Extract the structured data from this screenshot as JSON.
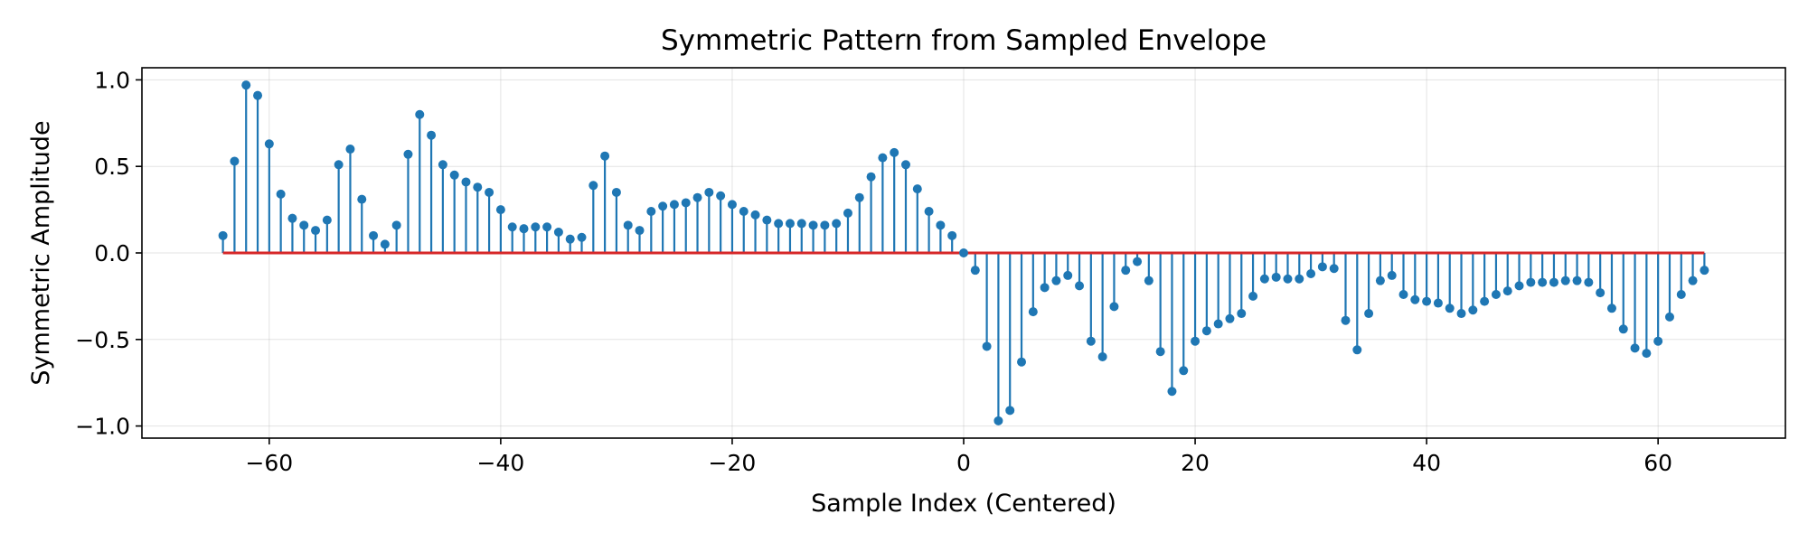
{
  "chart_data": {
    "type": "stem",
    "title": "Symmetric Pattern from Sampled Envelope",
    "xlabel": "Sample Index (Centered)",
    "ylabel": "Symmetric Amplitude",
    "xlim": [
      -71,
      71
    ],
    "ylim": [
      -1.07,
      1.07
    ],
    "xticks": [
      -60,
      -40,
      -20,
      0,
      20,
      40,
      60
    ],
    "yticks": [
      -1.0,
      -0.5,
      0.0,
      0.5,
      1.0
    ],
    "xtick_labels": [
      "−60",
      "−40",
      "−20",
      "0",
      "20",
      "40",
      "60"
    ],
    "ytick_labels": [
      "−1.0",
      "−0.5",
      "0.0",
      "0.5",
      "1.0"
    ],
    "grid": true,
    "baseline": 0,
    "x": [
      -64,
      -63,
      -62,
      -61,
      -60,
      -59,
      -58,
      -57,
      -56,
      -55,
      -54,
      -53,
      -52,
      -51,
      -50,
      -49,
      -48,
      -47,
      -46,
      -45,
      -44,
      -43,
      -42,
      -41,
      -40,
      -39,
      -38,
      -37,
      -36,
      -35,
      -34,
      -33,
      -32,
      -31,
      -30,
      -29,
      -28,
      -27,
      -26,
      -25,
      -24,
      -23,
      -22,
      -21,
      -20,
      -19,
      -18,
      -17,
      -16,
      -15,
      -14,
      -13,
      -12,
      -11,
      -10,
      -9,
      -8,
      -7,
      -6,
      -5,
      -4,
      -3,
      -2,
      -1,
      0,
      1,
      2,
      3,
      4,
      5,
      6,
      7,
      8,
      9,
      10,
      11,
      12,
      13,
      14,
      15,
      16,
      17,
      18,
      19,
      20,
      21,
      22,
      23,
      24,
      25,
      26,
      27,
      28,
      29,
      30,
      31,
      32,
      33,
      34,
      35,
      36,
      37,
      38,
      39,
      40,
      41,
      42,
      43,
      44,
      45,
      46,
      47,
      48,
      49,
      50,
      51,
      52,
      53,
      54,
      55,
      56,
      57,
      58,
      59,
      60,
      61,
      62,
      63,
      64
    ],
    "y": [
      0.1,
      0.53,
      0.97,
      0.91,
      0.63,
      0.34,
      0.2,
      0.16,
      0.13,
      0.19,
      0.51,
      0.6,
      0.31,
      0.1,
      0.05,
      0.16,
      0.57,
      0.8,
      0.68,
      0.51,
      0.45,
      0.41,
      0.38,
      0.35,
      0.25,
      0.15,
      0.14,
      0.15,
      0.15,
      0.12,
      0.08,
      0.09,
      0.39,
      0.56,
      0.35,
      0.16,
      0.13,
      0.24,
      0.27,
      0.28,
      0.29,
      0.32,
      0.35,
      0.33,
      0.28,
      0.24,
      0.22,
      0.19,
      0.17,
      0.17,
      0.17,
      0.16,
      0.16,
      0.17,
      0.23,
      0.32,
      0.44,
      0.55,
      0.58,
      0.51,
      0.37,
      0.24,
      0.16,
      0.1,
      0,
      -0.1,
      -0.54,
      -0.97,
      -0.91,
      -0.63,
      -0.34,
      -0.2,
      -0.16,
      -0.13,
      -0.19,
      -0.51,
      -0.6,
      -0.31,
      -0.1,
      -0.05,
      -0.16,
      -0.57,
      -0.8,
      -0.68,
      -0.51,
      -0.45,
      -0.41,
      -0.38,
      -0.35,
      -0.25,
      -0.15,
      -0.14,
      -0.15,
      -0.15,
      -0.12,
      -0.08,
      -0.09,
      -0.39,
      -0.56,
      -0.35,
      -0.16,
      -0.13,
      -0.24,
      -0.27,
      -0.28,
      -0.29,
      -0.32,
      -0.35,
      -0.33,
      -0.28,
      -0.24,
      -0.22,
      -0.19,
      -0.17,
      -0.17,
      -0.17,
      -0.16,
      -0.16,
      -0.17,
      -0.23,
      -0.32,
      -0.44,
      -0.55,
      -0.58,
      -0.51,
      -0.37,
      -0.24,
      -0.16,
      -0.1
    ],
    "colors": {
      "stem": "#1f77b4",
      "marker": "#1f77b4",
      "baseline": "#d62728"
    }
  }
}
